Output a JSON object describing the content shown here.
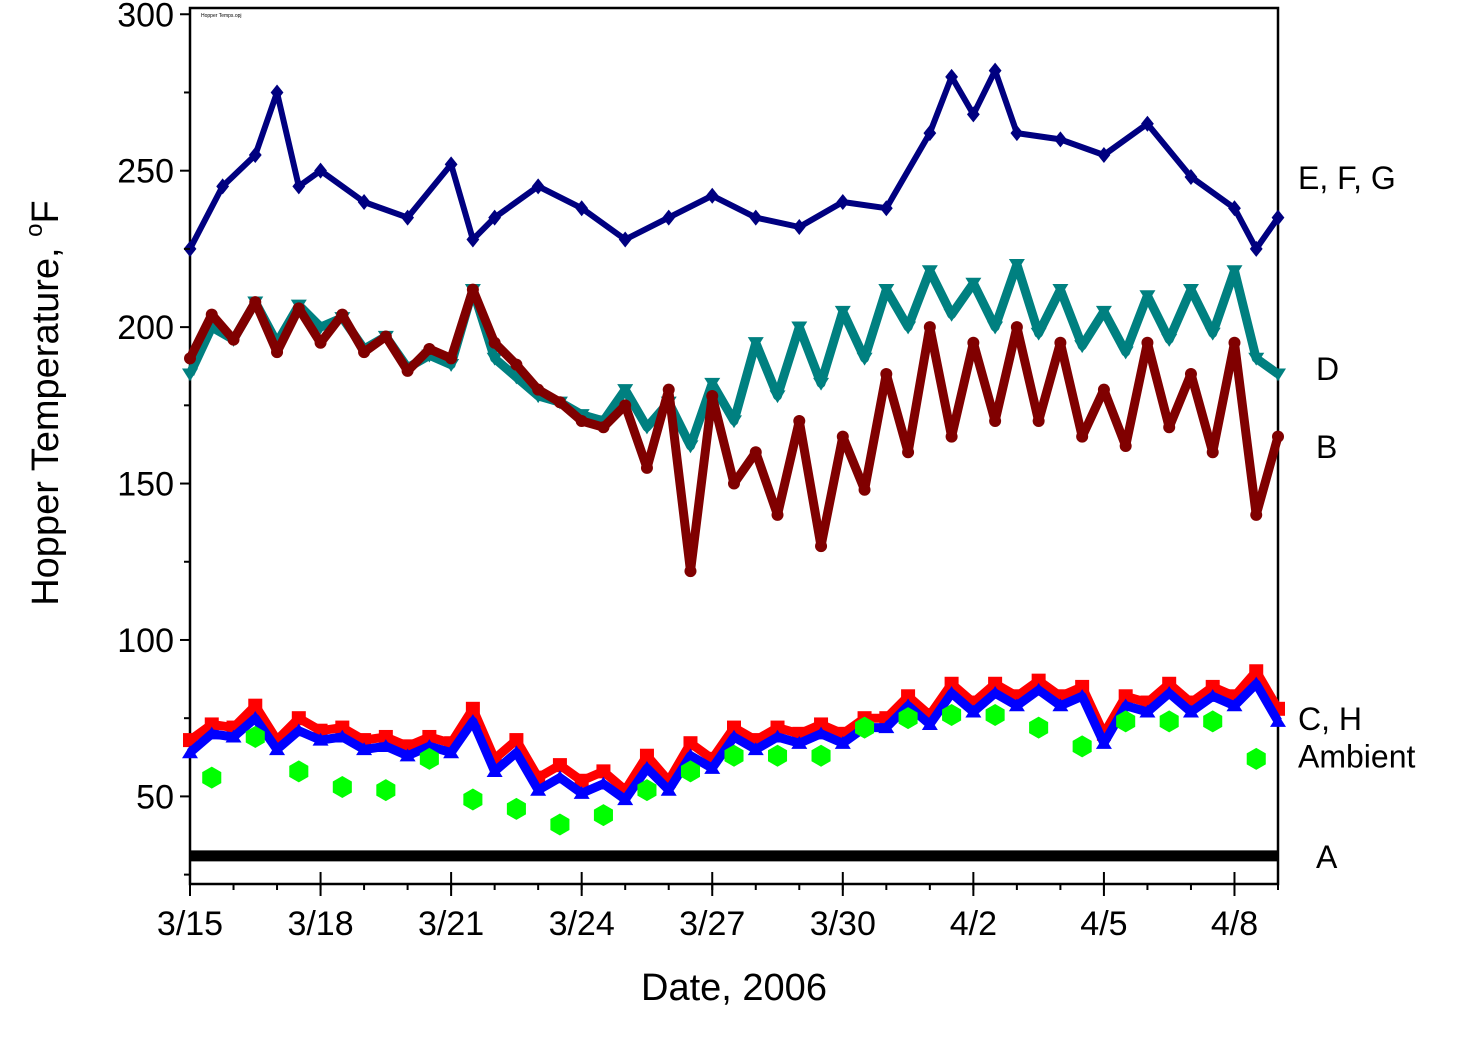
{
  "chart_data": {
    "type": "scatter",
    "title": "",
    "file_label": "Hopper Temps.opj",
    "xlabel": "Date, 2006",
    "ylabel": {
      "main": "Hopper Temperature, ",
      "sup": "o",
      "unit": "F"
    },
    "xlim": [
      "2006-03-15",
      "2006-04-09"
    ],
    "ylim": [
      22,
      302
    ],
    "x_ticks": [
      {
        "date": "2006-03-15",
        "label": "3/15"
      },
      {
        "date": "2006-03-18",
        "label": "3/18"
      },
      {
        "date": "2006-03-21",
        "label": "3/21"
      },
      {
        "date": "2006-03-24",
        "label": "3/24"
      },
      {
        "date": "2006-03-27",
        "label": "3/27"
      },
      {
        "date": "2006-03-30",
        "label": "3/30"
      },
      {
        "date": "2006-04-02",
        "label": "4/2"
      },
      {
        "date": "2006-04-05",
        "label": "4/5"
      },
      {
        "date": "2006-04-08",
        "label": "4/8"
      }
    ],
    "y_ticks": [
      50,
      100,
      150,
      200,
      250,
      300
    ],
    "grid": false,
    "legend": "none",
    "series_labels": [
      {
        "text": "E, F, G",
        "y": 248
      },
      {
        "text": "D",
        "y": 187
      },
      {
        "text": "B",
        "y": 162
      },
      {
        "text": "C, H",
        "y": 75
      },
      {
        "text": "Ambient",
        "y": 63
      },
      {
        "text": "A",
        "y": 31
      }
    ],
    "series": [
      {
        "label": "E, F, G",
        "marker": "diamond",
        "color": "#000080",
        "x": [
          "2006-03-15",
          "2006-03-15 18:00",
          "2006-03-16 12:00",
          "2006-03-17",
          "2006-03-17 12:00",
          "2006-03-18",
          "2006-03-19",
          "2006-03-20",
          "2006-03-21",
          "2006-03-21 12:00",
          "2006-03-22",
          "2006-03-23",
          "2006-03-24",
          "2006-03-25",
          "2006-03-26",
          "2006-03-27",
          "2006-03-28",
          "2006-03-29",
          "2006-03-30",
          "2006-03-31",
          "2006-04-01",
          "2006-04-01 12:00",
          "2006-04-02",
          "2006-04-02 12:00",
          "2006-04-03",
          "2006-04-04",
          "2006-04-05",
          "2006-04-06",
          "2006-04-07",
          "2006-04-08",
          "2006-04-08 12:00",
          "2006-04-09"
        ],
        "y": [
          225,
          245,
          255,
          275,
          245,
          250,
          240,
          235,
          252,
          228,
          235,
          245,
          238,
          228,
          235,
          242,
          235,
          232,
          240,
          238,
          262,
          280,
          268,
          282,
          262,
          260,
          255,
          265,
          248,
          238,
          225,
          235
        ]
      },
      {
        "label": "D",
        "marker": "triangle-down",
        "color": "#008080",
        "x": [
          "2006-03-15",
          "2006-03-15 12:00",
          "2006-03-16",
          "2006-03-16 12:00",
          "2006-03-17",
          "2006-03-17 12:00",
          "2006-03-18",
          "2006-03-18 12:00",
          "2006-03-19",
          "2006-03-19 12:00",
          "2006-03-20",
          "2006-03-20 12:00",
          "2006-03-21",
          "2006-03-21 12:00",
          "2006-03-22",
          "2006-03-22 12:00",
          "2006-03-23",
          "2006-03-23 12:00",
          "2006-03-24",
          "2006-03-24 12:00",
          "2006-03-25",
          "2006-03-25 12:00",
          "2006-03-26",
          "2006-03-26 12:00",
          "2006-03-27",
          "2006-03-27 12:00",
          "2006-03-28",
          "2006-03-28 12:00",
          "2006-03-29",
          "2006-03-29 12:00",
          "2006-03-30",
          "2006-03-30 12:00",
          "2006-03-31",
          "2006-03-31 12:00",
          "2006-04-01",
          "2006-04-01 12:00",
          "2006-04-02",
          "2006-04-02 12:00",
          "2006-04-03",
          "2006-04-03 12:00",
          "2006-04-04",
          "2006-04-04 12:00",
          "2006-04-05",
          "2006-04-05 12:00",
          "2006-04-06",
          "2006-04-06 12:00",
          "2006-04-07",
          "2006-04-07 12:00",
          "2006-04-08",
          "2006-04-08 12:00",
          "2006-04-09"
        ],
        "y": [
          185,
          200,
          196,
          208,
          195,
          207,
          200,
          203,
          193,
          197,
          187,
          191,
          188,
          212,
          190,
          184,
          178,
          176,
          172,
          170,
          180,
          168,
          176,
          162,
          182,
          170,
          195,
          178,
          200,
          182,
          205,
          190,
          212,
          200,
          218,
          204,
          214,
          200,
          220,
          198,
          212,
          194,
          205,
          192,
          210,
          196,
          212,
          198,
          218,
          190,
          185
        ]
      },
      {
        "label": "B",
        "marker": "circle",
        "color": "#800000",
        "x": [
          "2006-03-15",
          "2006-03-15 12:00",
          "2006-03-16",
          "2006-03-16 12:00",
          "2006-03-17",
          "2006-03-17 12:00",
          "2006-03-18",
          "2006-03-18 12:00",
          "2006-03-19",
          "2006-03-19 12:00",
          "2006-03-20",
          "2006-03-20 12:00",
          "2006-03-21",
          "2006-03-21 12:00",
          "2006-03-22",
          "2006-03-22 12:00",
          "2006-03-23",
          "2006-03-23 12:00",
          "2006-03-24",
          "2006-03-24 12:00",
          "2006-03-25",
          "2006-03-25 12:00",
          "2006-03-26",
          "2006-03-26 12:00",
          "2006-03-27",
          "2006-03-27 12:00",
          "2006-03-28",
          "2006-03-28 12:00",
          "2006-03-29",
          "2006-03-29 12:00",
          "2006-03-30",
          "2006-03-30 12:00",
          "2006-03-31",
          "2006-03-31 12:00",
          "2006-04-01",
          "2006-04-01 12:00",
          "2006-04-02",
          "2006-04-02 12:00",
          "2006-04-03",
          "2006-04-03 12:00",
          "2006-04-04",
          "2006-04-04 12:00",
          "2006-04-05",
          "2006-04-05 12:00",
          "2006-04-06",
          "2006-04-06 12:00",
          "2006-04-07",
          "2006-04-07 12:00",
          "2006-04-08",
          "2006-04-08 12:00",
          "2006-04-09"
        ],
        "y": [
          190,
          204,
          196,
          208,
          192,
          206,
          195,
          204,
          192,
          197,
          186,
          193,
          190,
          212,
          195,
          188,
          180,
          176,
          170,
          168,
          175,
          155,
          180,
          122,
          178,
          150,
          160,
          140,
          170,
          130,
          165,
          148,
          185,
          160,
          200,
          165,
          195,
          170,
          200,
          170,
          195,
          165,
          180,
          162,
          195,
          168,
          185,
          160,
          195,
          140,
          165
        ]
      },
      {
        "label": "C, H",
        "marker": "square",
        "color": "#ff0000",
        "x": [
          "2006-03-15",
          "2006-03-15 12:00",
          "2006-03-16",
          "2006-03-16 12:00",
          "2006-03-17",
          "2006-03-17 12:00",
          "2006-03-18",
          "2006-03-18 12:00",
          "2006-03-19",
          "2006-03-19 12:00",
          "2006-03-20",
          "2006-03-20 12:00",
          "2006-03-21",
          "2006-03-21 12:00",
          "2006-03-22",
          "2006-03-22 12:00",
          "2006-03-23",
          "2006-03-23 12:00",
          "2006-03-24",
          "2006-03-24 12:00",
          "2006-03-25",
          "2006-03-25 12:00",
          "2006-03-26",
          "2006-03-26 12:00",
          "2006-03-27",
          "2006-03-27 12:00",
          "2006-03-28",
          "2006-03-28 12:00",
          "2006-03-29",
          "2006-03-29 12:00",
          "2006-03-30",
          "2006-03-30 12:00",
          "2006-03-31",
          "2006-03-31 12:00",
          "2006-04-01",
          "2006-04-01 12:00",
          "2006-04-02",
          "2006-04-02 12:00",
          "2006-04-03",
          "2006-04-03 12:00",
          "2006-04-04",
          "2006-04-04 12:00",
          "2006-04-05",
          "2006-04-05 12:00",
          "2006-04-06",
          "2006-04-06 12:00",
          "2006-04-07",
          "2006-04-07 12:00",
          "2006-04-08",
          "2006-04-08 12:00",
          "2006-04-09"
        ],
        "y": [
          68,
          73,
          72,
          79,
          68,
          75,
          71,
          72,
          68,
          69,
          66,
          69,
          67,
          78,
          62,
          68,
          56,
          60,
          55,
          58,
          52,
          63,
          55,
          67,
          62,
          72,
          68,
          72,
          70,
          73,
          70,
          75,
          75,
          82,
          76,
          86,
          80,
          86,
          82,
          87,
          82,
          85,
          70,
          82,
          80,
          86,
          80,
          85,
          82,
          90,
          78
        ]
      },
      {
        "label": "C, H",
        "marker": "triangle-up",
        "color": "#0000ff",
        "x": [
          "2006-03-15",
          "2006-03-15 12:00",
          "2006-03-16",
          "2006-03-16 12:00",
          "2006-03-17",
          "2006-03-17 12:00",
          "2006-03-18",
          "2006-03-18 12:00",
          "2006-03-19",
          "2006-03-19 12:00",
          "2006-03-20",
          "2006-03-20 12:00",
          "2006-03-21",
          "2006-03-21 12:00",
          "2006-03-22",
          "2006-03-22 12:00",
          "2006-03-23",
          "2006-03-23 12:00",
          "2006-03-24",
          "2006-03-24 12:00",
          "2006-03-25",
          "2006-03-25 12:00",
          "2006-03-26",
          "2006-03-26 12:00",
          "2006-03-27",
          "2006-03-27 12:00",
          "2006-03-28",
          "2006-03-28 12:00",
          "2006-03-29",
          "2006-03-29 12:00",
          "2006-03-30",
          "2006-03-30 12:00",
          "2006-03-31",
          "2006-03-31 12:00",
          "2006-04-01",
          "2006-04-01 12:00",
          "2006-04-02",
          "2006-04-02 12:00",
          "2006-04-03",
          "2006-04-03 12:00",
          "2006-04-04",
          "2006-04-04 12:00",
          "2006-04-05",
          "2006-04-05 12:00",
          "2006-04-06",
          "2006-04-06 12:00",
          "2006-04-07",
          "2006-04-07 12:00",
          "2006-04-08",
          "2006-04-08 12:00",
          "2006-04-09"
        ],
        "y": [
          64,
          70,
          69,
          75,
          65,
          71,
          68,
          69,
          65,
          66,
          63,
          66,
          64,
          74,
          58,
          64,
          52,
          56,
          51,
          54,
          49,
          59,
          52,
          63,
          59,
          69,
          65,
          69,
          67,
          70,
          67,
          72,
          72,
          79,
          73,
          83,
          77,
          83,
          79,
          84,
          79,
          82,
          67,
          79,
          77,
          83,
          77,
          82,
          79,
          86,
          74
        ]
      },
      {
        "label": "Ambient",
        "marker": "hexagon",
        "color": "#00ff00",
        "x": [
          "2006-03-15 12:00",
          "2006-03-16 12:00",
          "2006-03-17 12:00",
          "2006-03-18 12:00",
          "2006-03-19 12:00",
          "2006-03-20 12:00",
          "2006-03-21 12:00",
          "2006-03-22 12:00",
          "2006-03-23 12:00",
          "2006-03-24 12:00",
          "2006-03-25 12:00",
          "2006-03-26 12:00",
          "2006-03-27 12:00",
          "2006-03-28 12:00",
          "2006-03-29 12:00",
          "2006-03-30 12:00",
          "2006-03-31 12:00",
          "2006-04-01 12:00",
          "2006-04-02 12:00",
          "2006-04-03 12:00",
          "2006-04-04 12:00",
          "2006-04-05 12:00",
          "2006-04-06 12:00",
          "2006-04-07 12:00",
          "2006-04-08 12:00"
        ],
        "y": [
          56,
          69,
          58,
          53,
          52,
          62,
          49,
          46,
          41,
          44,
          52,
          58,
          63,
          63,
          63,
          72,
          75,
          76,
          76,
          72,
          66,
          74,
          74,
          74,
          62
        ]
      },
      {
        "label": "A",
        "marker": "line",
        "color": "#000000",
        "x": [
          "2006-03-15",
          "2006-04-09"
        ],
        "y": [
          31,
          31
        ]
      }
    ]
  }
}
